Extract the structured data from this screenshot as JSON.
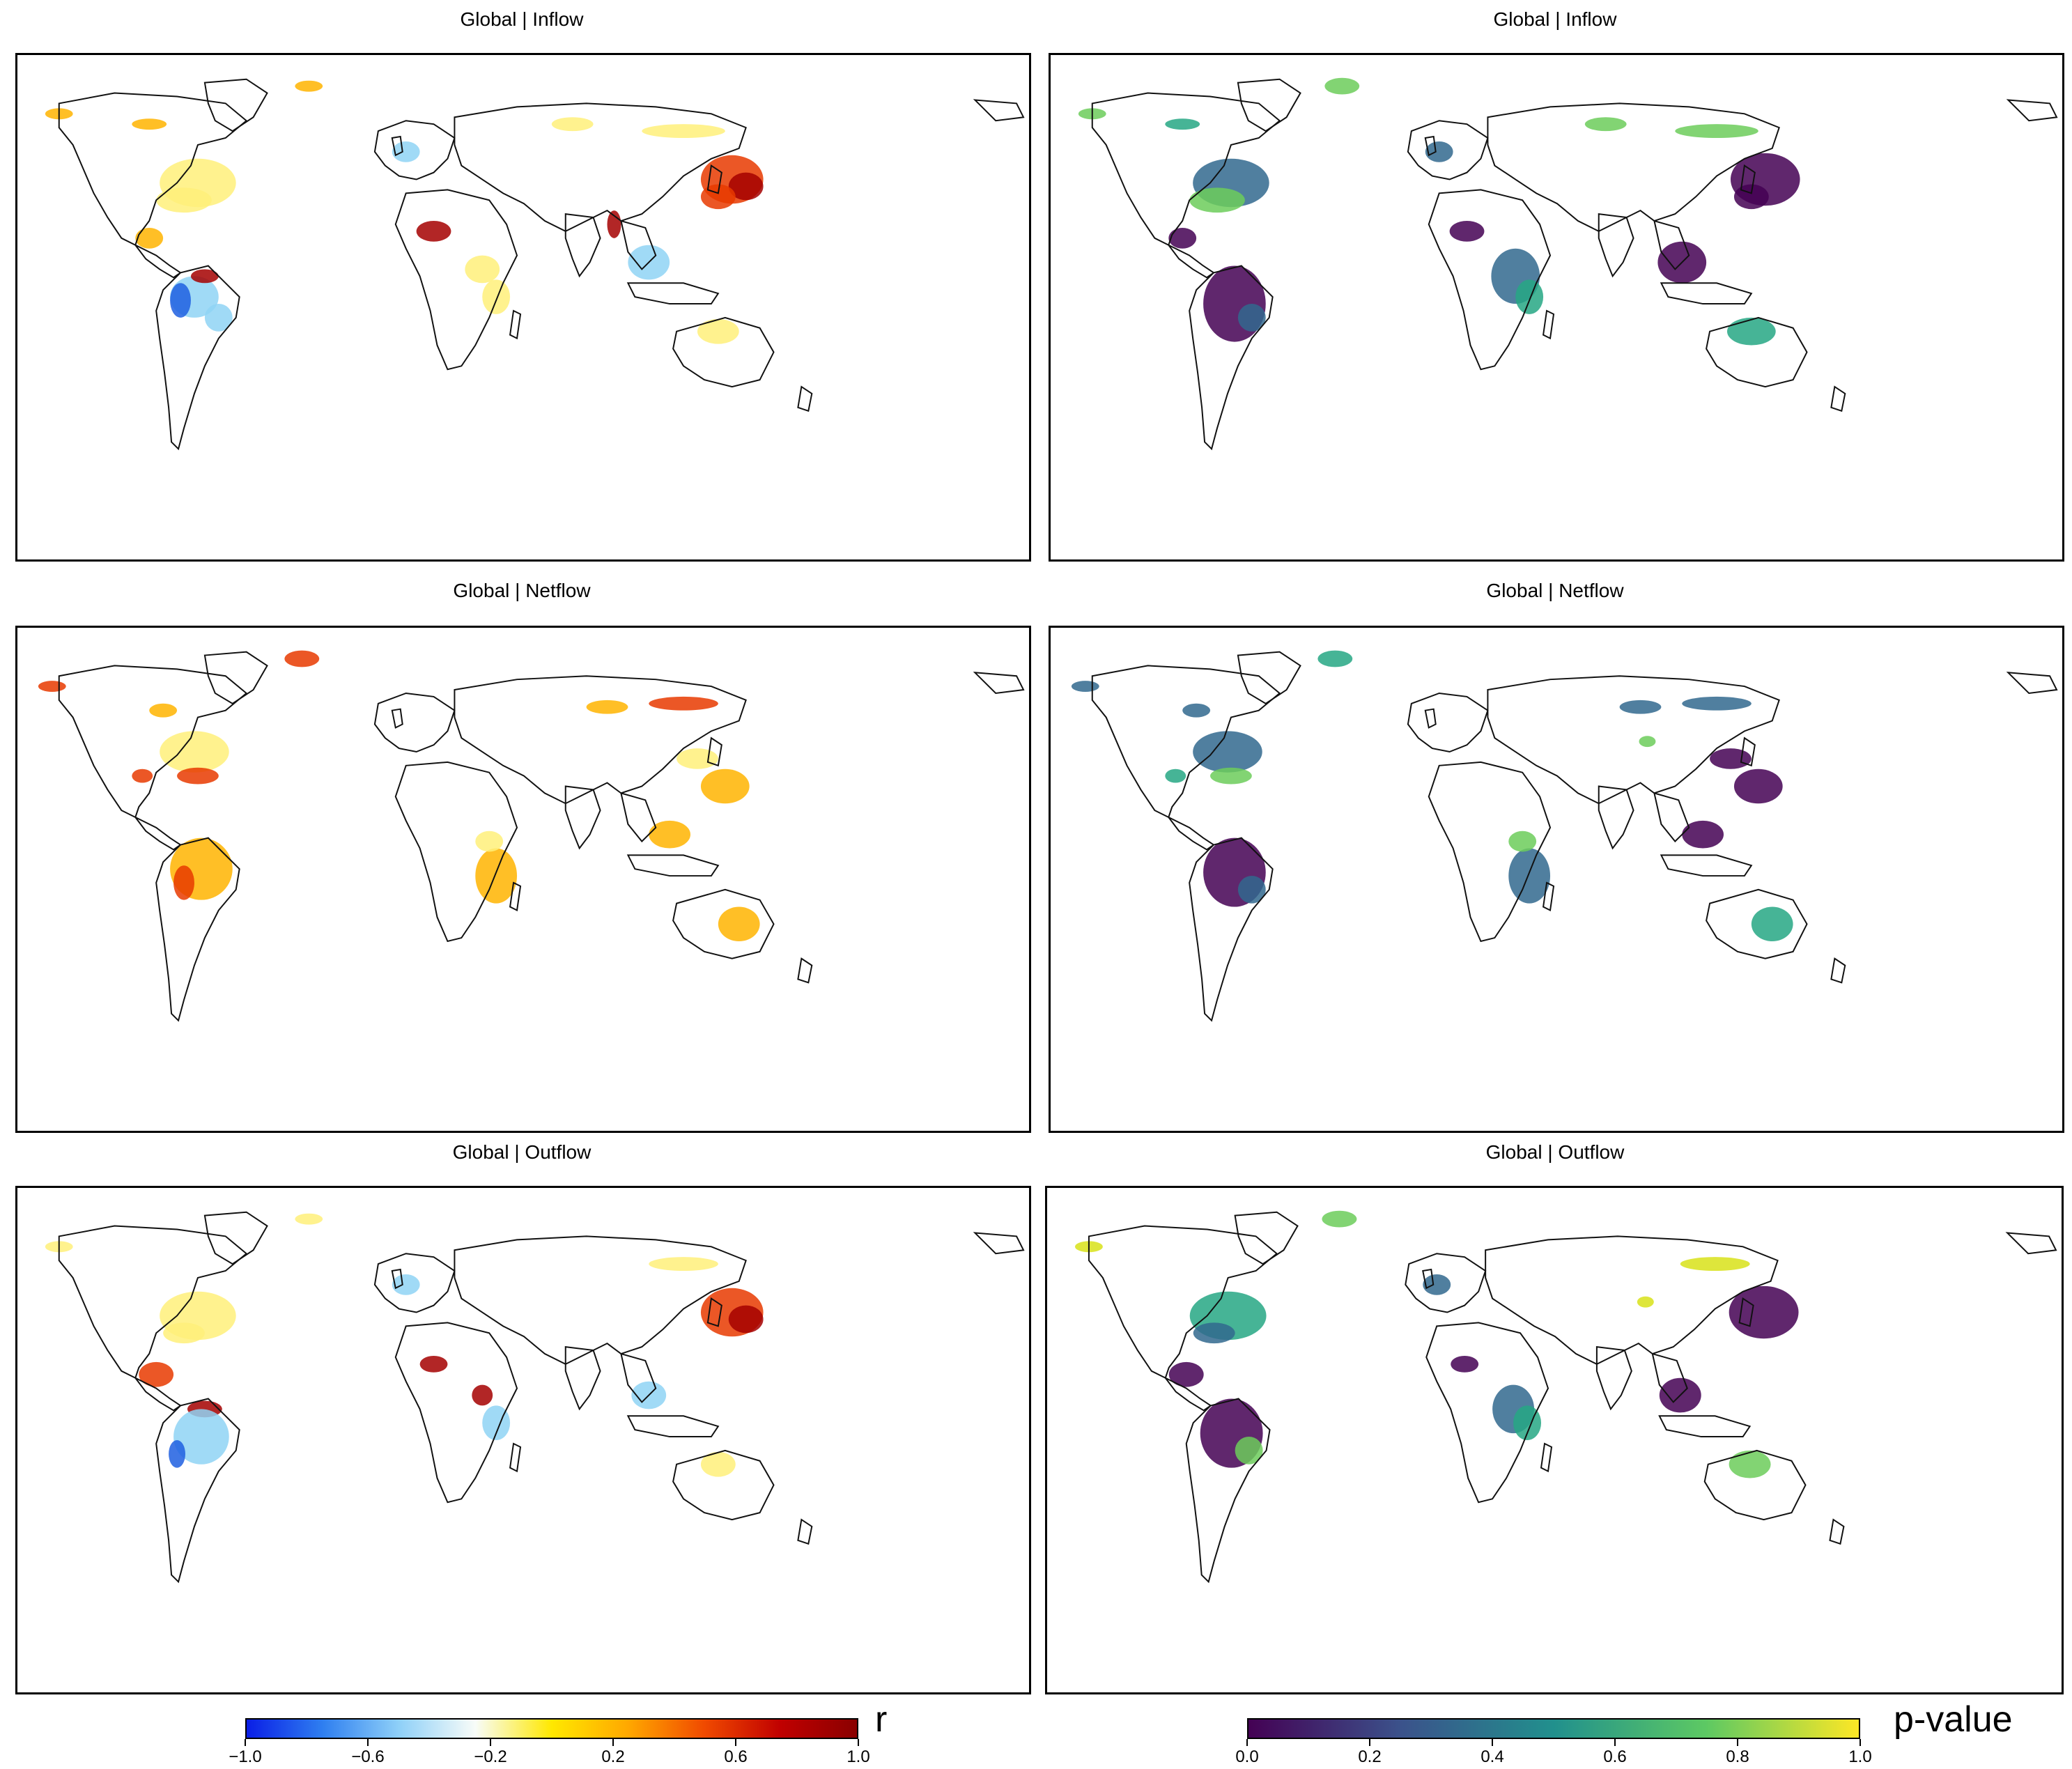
{
  "panels": [
    {
      "title": "Global | Inflow",
      "variable": "r",
      "colormap": "jet-like",
      "region": "global",
      "flow": "inflow"
    },
    {
      "title": "Global | Inflow",
      "variable": "p-value",
      "colormap": "viridis",
      "region": "global",
      "flow": "inflow"
    },
    {
      "title": "Global | Netflow",
      "variable": "r",
      "colormap": "jet-like",
      "region": "global",
      "flow": "netflow"
    },
    {
      "title": "Global | Netflow",
      "variable": "p-value",
      "colormap": "viridis",
      "region": "global",
      "flow": "netflow"
    },
    {
      "title": "Global | Outflow",
      "variable": "r",
      "colormap": "jet-like",
      "region": "global",
      "flow": "outflow"
    },
    {
      "title": "Global | Outflow",
      "variable": "p-value",
      "colormap": "viridis",
      "region": "global",
      "flow": "outflow"
    }
  ],
  "colorbars": {
    "r": {
      "label": "r",
      "ticks": [
        "−1.0",
        "−0.6",
        "−0.2",
        "0.2",
        "0.6",
        "1.0"
      ],
      "range": [
        -1.0,
        1.0
      ],
      "colors": [
        "#0a1ee6",
        "#2f7ff0",
        "#8fd0f8",
        "#f8fcf8",
        "#ffe800",
        "#ffa800",
        "#f04a00",
        "#c00000",
        "#8a0000"
      ]
    },
    "p": {
      "label": "p-value",
      "ticks": [
        "0.0",
        "0.2",
        "0.4",
        "0.6",
        "0.8",
        "1.0"
      ],
      "range": [
        0.0,
        1.0
      ],
      "colors": [
        "#440154",
        "#3b528b",
        "#21908d",
        "#5dc963",
        "#fde725"
      ]
    }
  },
  "legend": {
    "r_colors": {
      "neg_strong": "#1e5fe0",
      "neg": "#8fd4f5",
      "neutral": "#fff07a",
      "pos": "#ffb400",
      "pos_strong": "#e83a00",
      "pos_max": "#a40000"
    },
    "p_colors": {
      "p0": "#440154",
      "p1": "#31688e",
      "p2": "#26a784",
      "p3": "#6ccd5a",
      "p4": "#d8e219"
    }
  }
}
